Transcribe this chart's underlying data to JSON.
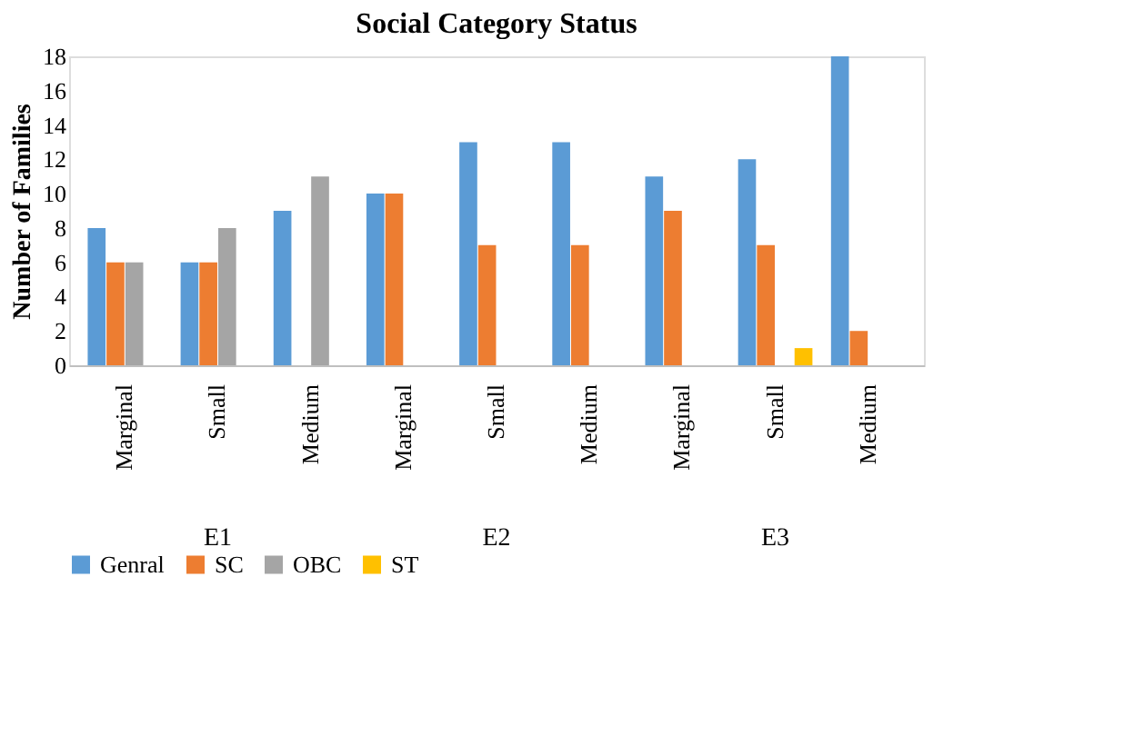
{
  "chart_data": {
    "type": "bar",
    "title": "Social Category Status",
    "ylabel": "Number of Families",
    "categories": [
      "Marginal",
      "Small",
      "Medium",
      "Marginal",
      "Small",
      "Medium",
      "Marginal",
      "Small",
      "Medium"
    ],
    "series": [
      {
        "name": "Genral",
        "color": "#5b9bd5",
        "values": [
          8,
          6,
          9,
          10,
          13,
          13,
          11,
          12,
          18
        ]
      },
      {
        "name": "SC",
        "color": "#ed7d31",
        "values": [
          6,
          6,
          0,
          10,
          7,
          7,
          9,
          7,
          2
        ]
      },
      {
        "name": "OBC",
        "color": "#a5a5a5",
        "values": [
          6,
          8,
          11,
          0,
          0,
          0,
          0,
          0,
          0
        ]
      },
      {
        "name": "ST",
        "color": "#ffc000",
        "values": [
          0,
          0,
          0,
          0,
          0,
          0,
          0,
          1,
          0
        ]
      }
    ],
    "annotations": [
      "E1",
      "E2",
      "E3"
    ],
    "ylim": [
      0,
      18
    ],
    "yticks": [
      0,
      2,
      4,
      6,
      8,
      10,
      12,
      14,
      16,
      18
    ],
    "grid": false,
    "legend": "bottom"
  }
}
